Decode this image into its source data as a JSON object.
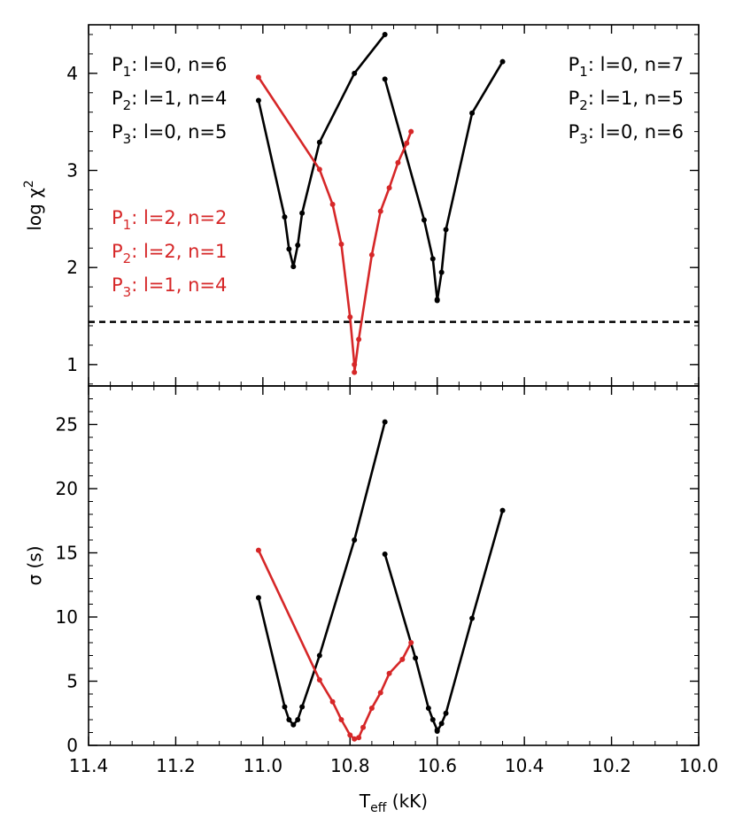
{
  "chart_data": {
    "type": "line",
    "x_axis": {
      "label": "T",
      "label_sub": "eff",
      "label_unit": " (kK)",
      "xlim": [
        11.4,
        10.0
      ],
      "ticks": [
        11.4,
        11.2,
        11.0,
        10.8,
        10.6,
        10.4,
        10.2,
        10.0
      ],
      "tick_labels": [
        "11.4",
        "11.2",
        "11.0",
        "10.8",
        "10.6",
        "10.4",
        "10.2",
        "10.0"
      ]
    },
    "panels": [
      {
        "name": "top",
        "ylabel": "log χ",
        "ylabel_sup": "2",
        "ylim": [
          0.78,
          4.5
        ],
        "yticks": [
          1,
          2,
          3,
          4
        ],
        "ytick_labels": [
          "1",
          "2",
          "3",
          "4"
        ],
        "threshold": {
          "y": 1.44,
          "style": "dashed",
          "color": "#000000"
        },
        "series": [
          {
            "name": "P1: l=0, n=6 / P2: l=1, n=4 / P3: l=0, n=5",
            "color": "#000000",
            "x": [
              11.01,
              10.95,
              10.94,
              10.93,
              10.92,
              10.91,
              10.87,
              10.79,
              10.72
            ],
            "y": [
              3.72,
              2.52,
              2.19,
              2.01,
              2.23,
              2.56,
              3.29,
              4.0,
              4.4
            ]
          },
          {
            "name": "P1: l=0, n=7 / P2: l=1, n=5 / P3: l=0, n=6",
            "color": "#000000",
            "x": [
              10.72,
              10.63,
              10.61,
              10.6,
              10.6,
              10.59,
              10.58,
              10.52,
              10.45
            ],
            "y": [
              3.94,
              2.49,
              2.09,
              1.67,
              1.66,
              1.95,
              2.39,
              3.59,
              4.12
            ]
          },
          {
            "name": "P1: l=2, n=2 / P2: l=2, n=1 / P3: l=1, n=4",
            "color": "#d62728",
            "x": [
              11.01,
              10.87,
              10.84,
              10.82,
              10.8,
              10.79,
              10.79,
              10.78,
              10.75,
              10.73,
              10.71,
              10.69,
              10.67,
              10.66
            ],
            "y": [
              3.96,
              3.01,
              2.65,
              2.24,
              1.49,
              1.0,
              0.92,
              1.26,
              2.13,
              2.58,
              2.82,
              3.08,
              3.28,
              3.4
            ]
          }
        ],
        "legends": [
          {
            "position": "top-left",
            "color": "#000000",
            "entries": [
              {
                "p": "P",
                "sub": "1",
                "text": ": l=0, n=6"
              },
              {
                "p": "P",
                "sub": "2",
                "text": ": l=1, n=4"
              },
              {
                "p": "P",
                "sub": "3",
                "text": ": l=0, n=5"
              }
            ]
          },
          {
            "position": "top-right",
            "color": "#000000",
            "entries": [
              {
                "p": "P",
                "sub": "1",
                "text": ": l=0, n=7"
              },
              {
                "p": "P",
                "sub": "2",
                "text": ": l=1, n=5"
              },
              {
                "p": "P",
                "sub": "3",
                "text": ": l=0, n=6"
              }
            ]
          },
          {
            "position": "middle-left",
            "color": "#d62728",
            "entries": [
              {
                "p": "P",
                "sub": "1",
                "text": ": l=2, n=2"
              },
              {
                "p": "P",
                "sub": "2",
                "text": ": l=2, n=1"
              },
              {
                "p": "P",
                "sub": "3",
                "text": ": l=1, n=4"
              }
            ]
          }
        ]
      },
      {
        "name": "bottom",
        "ylabel": "σ (s)",
        "ylim": [
          0,
          28
        ],
        "yticks": [
          0,
          5,
          10,
          15,
          20,
          25
        ],
        "ytick_labels": [
          "0",
          "5",
          "10",
          "15",
          "20",
          "25"
        ],
        "series": [
          {
            "name": "P1: l=0, n=6 / P2: l=1, n=4 / P3: l=0, n=5",
            "color": "#000000",
            "x": [
              11.01,
              10.95,
              10.94,
              10.93,
              10.92,
              10.91,
              10.87,
              10.79,
              10.72
            ],
            "y": [
              11.5,
              3.0,
              2.0,
              1.6,
              2.0,
              3.0,
              7.0,
              16.0,
              25.2
            ]
          },
          {
            "name": "P1: l=0, n=7 / P2: l=1, n=5 / P3: l=0, n=6",
            "color": "#000000",
            "x": [
              10.72,
              10.65,
              10.62,
              10.61,
              10.6,
              10.6,
              10.59,
              10.58,
              10.52,
              10.45
            ],
            "y": [
              14.9,
              6.8,
              2.9,
              2.0,
              1.2,
              1.1,
              1.7,
              2.5,
              9.9,
              18.3
            ]
          },
          {
            "name": "P1: l=2, n=2 / P2: l=2, n=1 / P3: l=1, n=4",
            "color": "#d62728",
            "x": [
              11.01,
              10.87,
              10.84,
              10.82,
              10.8,
              10.79,
              10.78,
              10.77,
              10.75,
              10.73,
              10.71,
              10.68,
              10.66
            ],
            "y": [
              15.2,
              5.1,
              3.4,
              2.0,
              0.8,
              0.5,
              0.6,
              1.4,
              2.9,
              4.1,
              5.6,
              6.7,
              8.0
            ]
          }
        ]
      }
    ]
  }
}
